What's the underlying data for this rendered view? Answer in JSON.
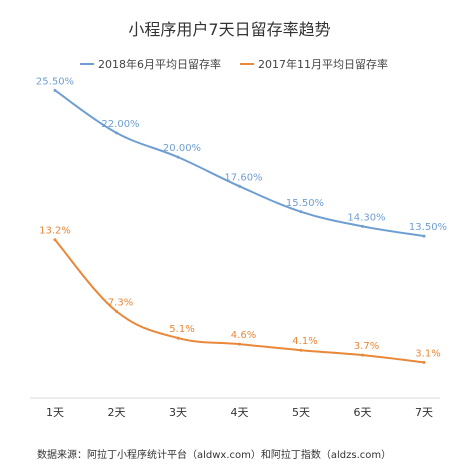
{
  "chart_data": {
    "type": "line",
    "title": "小程序用户7天日留存率趋势",
    "categories": [
      "1天",
      "2天",
      "3天",
      "4天",
      "5天",
      "6天",
      "7天"
    ],
    "series": [
      {
        "name": "2018年6月平均日留存率",
        "values": [
          25.5,
          22.0,
          20.0,
          17.6,
          15.5,
          14.3,
          13.5
        ],
        "labels": [
          "25.50%",
          "22.00%",
          "20.00%",
          "17.60%",
          "15.50%",
          "14.30%",
          "13.50%"
        ],
        "color": "#6f9fd2"
      },
      {
        "name": "2017年11月平均日留存率",
        "values": [
          13.2,
          7.3,
          5.1,
          4.6,
          4.1,
          3.7,
          3.1
        ],
        "labels": [
          "13.2%",
          "7.3%",
          "5.1%",
          "4.6%",
          "4.1%",
          "3.7%",
          "3.1%"
        ],
        "color": "#e8883a"
      }
    ],
    "ylim": [
      0,
      28
    ],
    "grid": false,
    "legend_position": "top"
  },
  "footer": "数据来源：阿拉丁小程序统计平台（aldwx.com）和阿拉丁指数（aldzs.com）"
}
